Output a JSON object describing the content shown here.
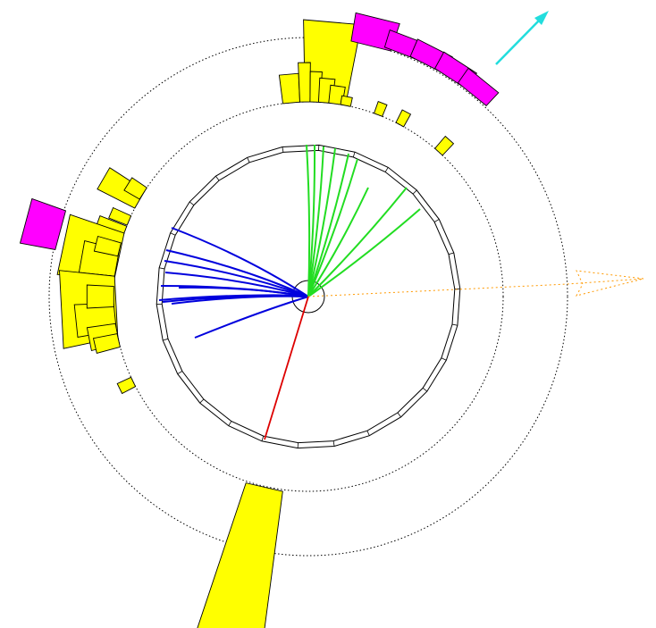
{
  "colors": {
    "background": "#ffffff",
    "calorimeter_tower": "#ffff00",
    "muon_tower": "#ff00ff",
    "track_blue": "#0000dd",
    "track_green": "#22dd22",
    "track_red": "#dd0000",
    "muon_arrow": "#22dddd",
    "missing_energy": "#ff9900",
    "outline": "#000000"
  },
  "icons": {
    "muon_arrow": "arrow-icon",
    "missing_energy": "dashed-arrow-icon"
  }
}
